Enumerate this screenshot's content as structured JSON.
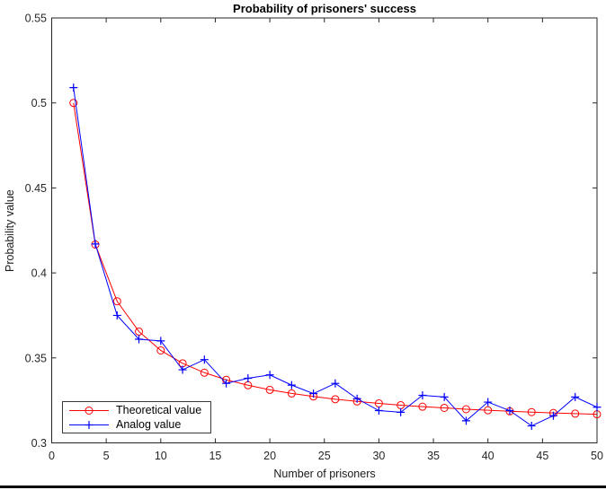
{
  "window": {
    "background_color": "#ffffff",
    "bottom_border_color": "#000000"
  },
  "chart_data": {
    "type": "line",
    "title": "Probability of prisoners' success",
    "xlabel": "Number of prisoners",
    "ylabel": "Probability value",
    "xlim": [
      0,
      50
    ],
    "ylim": [
      0.3,
      0.55
    ],
    "x_ticks": [
      0,
      5,
      10,
      15,
      20,
      25,
      30,
      35,
      40,
      45,
      50
    ],
    "x_tick_labels": [
      "0",
      "5",
      "10",
      "15",
      "20",
      "25",
      "30",
      "35",
      "40",
      "45",
      "50"
    ],
    "y_ticks": [
      0.3,
      0.35,
      0.4,
      0.45,
      0.5,
      0.55
    ],
    "y_tick_labels": [
      "0.3",
      "0.35",
      "0.4",
      "0.45",
      "0.5",
      "0.55"
    ],
    "grid": false,
    "box": true,
    "tick_direction": "in",
    "axis_color": "#262626",
    "legend_position": "lower-left",
    "x": [
      2,
      4,
      6,
      8,
      10,
      12,
      14,
      16,
      18,
      20,
      22,
      24,
      26,
      28,
      30,
      32,
      34,
      36,
      38,
      40,
      42,
      44,
      46,
      48,
      50
    ],
    "series": [
      {
        "name": "Theoretical value",
        "color": "#ff0000",
        "marker": "circle",
        "values": [
          0.5,
          0.4167,
          0.3833,
          0.3655,
          0.3544,
          0.3468,
          0.3413,
          0.3371,
          0.3339,
          0.3312,
          0.3291,
          0.3273,
          0.3257,
          0.3244,
          0.3232,
          0.3222,
          0.3213,
          0.3206,
          0.3198,
          0.3192,
          0.3186,
          0.3181,
          0.3176,
          0.3172,
          0.3168
        ]
      },
      {
        "name": "Analog value",
        "color": "#0000ff",
        "marker": "plus",
        "values": [
          0.509,
          0.417,
          0.375,
          0.361,
          0.36,
          0.343,
          0.349,
          0.335,
          0.338,
          0.34,
          0.334,
          0.329,
          0.335,
          0.326,
          0.319,
          0.318,
          0.328,
          0.327,
          0.313,
          0.324,
          0.319,
          0.31,
          0.316,
          0.327,
          0.321
        ]
      }
    ]
  }
}
